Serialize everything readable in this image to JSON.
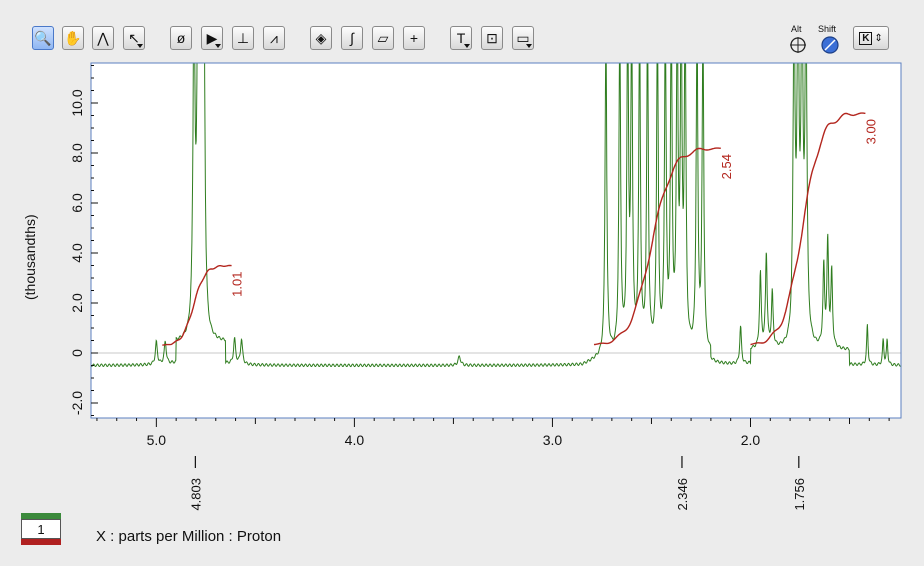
{
  "toolbar": {
    "tools": [
      {
        "name": "zoom-tool",
        "icon": "magnifier-icon",
        "glyph": "🔍",
        "active": true
      },
      {
        "name": "pan-tool",
        "icon": "hand-icon",
        "glyph": "✋"
      },
      {
        "name": "peak-tool",
        "icon": "peak-cursor-icon",
        "glyph": "⋀"
      },
      {
        "name": "select-tool",
        "icon": "arrow-cursor-icon",
        "glyph": "↖",
        "dropdown": true
      },
      {
        "name": "phase-tool",
        "icon": "phase-icon",
        "glyph": "ø"
      },
      {
        "name": "pointer-tool",
        "icon": "black-arrow-icon",
        "glyph": "▶",
        "dropdown": true
      },
      {
        "name": "baseline-tool",
        "icon": "baseline-icon",
        "glyph": "⊥"
      },
      {
        "name": "peak-pick-tool",
        "icon": "peak-pick-icon",
        "glyph": "⩘"
      },
      {
        "name": "center-tool",
        "icon": "diamond-target-icon",
        "glyph": "◈"
      },
      {
        "name": "integral-tool",
        "icon": "integral-icon",
        "glyph": "∫"
      },
      {
        "name": "ruler-tool",
        "icon": "ruler-icon",
        "glyph": "▱"
      },
      {
        "name": "crosshair-tool",
        "icon": "crosshair-icon",
        "glyph": "+"
      },
      {
        "name": "text-tool",
        "icon": "text-icon",
        "glyph": "T",
        "dropdown": true
      },
      {
        "name": "annotation-tool",
        "icon": "annotation-box-icon",
        "glyph": "⊡"
      },
      {
        "name": "frame-tool",
        "icon": "frame-icon",
        "glyph": "▭",
        "dropdown": true
      }
    ],
    "alt_label": "Alt",
    "shift_label": "Shift",
    "key_glyph": "K"
  },
  "colors": {
    "spectrum": "#2f7d1f",
    "integral": "#b3261e",
    "axis": "#111111",
    "frame": "#5b7fc0",
    "zero_line": "#c8c8c8"
  },
  "chart_data": {
    "type": "line",
    "xlabel": "X : parts per Million : Proton",
    "ylabel": "(thousandths)",
    "x_reversed": true,
    "xlim": [
      5.33,
      1.24
    ],
    "ylim": [
      -2.6,
      11.6
    ],
    "x_ticks": [
      5.0,
      4.0,
      3.0,
      2.0
    ],
    "x_tick_labels": [
      "5.0",
      "4.0",
      "3.0",
      "2.0"
    ],
    "y_ticks": [
      -2.0,
      0,
      2.0,
      4.0,
      6.0,
      8.0,
      10.0
    ],
    "y_tick_labels": [
      "-2.0",
      "0",
      "2.0",
      "4.0",
      "6.0",
      "8.0",
      "10.0"
    ],
    "peak_labels": [
      {
        "ppm": 4.803,
        "label": "4.803"
      },
      {
        "ppm": 2.346,
        "label": "2.346"
      },
      {
        "ppm": 1.756,
        "label": "1.756"
      }
    ],
    "integrals": [
      {
        "start": 4.97,
        "end": 4.62,
        "baseline": 0.3,
        "top": 3.5,
        "value_label": "1.01"
      },
      {
        "start": 2.79,
        "end": 2.15,
        "baseline": 0.3,
        "top": 8.2,
        "value_label": "2.54"
      },
      {
        "start": 2.0,
        "end": 1.42,
        "baseline": 0.3,
        "top": 9.6,
        "value_label": "3.00"
      }
    ],
    "series": [
      {
        "color": "#2f7d1f",
        "peaks": [
          {
            "ppm": 5.0,
            "h": 0.9,
            "w": 0.006
          },
          {
            "ppm": 4.955,
            "h": 0.9,
            "w": 0.006
          },
          {
            "ppm": 4.81,
            "h": 13,
            "w": 0.006
          },
          {
            "ppm": 4.79,
            "h": 13,
            "w": 0.006
          },
          {
            "ppm": 4.775,
            "h": 13,
            "w": 0.006
          },
          {
            "ppm": 4.76,
            "h": 13,
            "w": 0.006
          },
          {
            "ppm": 4.605,
            "h": 1.0,
            "w": 0.006
          },
          {
            "ppm": 4.57,
            "h": 1.0,
            "w": 0.006
          },
          {
            "ppm": 3.47,
            "h": 0.35,
            "w": 0.008
          },
          {
            "ppm": 2.73,
            "h": 13,
            "w": 0.005
          },
          {
            "ppm": 2.66,
            "h": 13,
            "w": 0.005
          },
          {
            "ppm": 2.62,
            "h": 13,
            "w": 0.005
          },
          {
            "ppm": 2.6,
            "h": 13,
            "w": 0.005
          },
          {
            "ppm": 2.56,
            "h": 13,
            "w": 0.005
          },
          {
            "ppm": 2.52,
            "h": 13,
            "w": 0.005
          },
          {
            "ppm": 2.47,
            "h": 13,
            "w": 0.005
          },
          {
            "ppm": 2.43,
            "h": 13,
            "w": 0.005
          },
          {
            "ppm": 2.4,
            "h": 13,
            "w": 0.005
          },
          {
            "ppm": 2.37,
            "h": 13,
            "w": 0.005
          },
          {
            "ppm": 2.35,
            "h": 13,
            "w": 0.005
          },
          {
            "ppm": 2.33,
            "h": 13,
            "w": 0.005
          },
          {
            "ppm": 2.27,
            "h": 13,
            "w": 0.005
          },
          {
            "ppm": 2.24,
            "h": 13,
            "w": 0.005
          },
          {
            "ppm": 2.05,
            "h": 1.5,
            "w": 0.005
          },
          {
            "ppm": 1.95,
            "h": 3.0,
            "w": 0.005
          },
          {
            "ppm": 1.92,
            "h": 3.8,
            "w": 0.005
          },
          {
            "ppm": 1.89,
            "h": 2.2,
            "w": 0.005
          },
          {
            "ppm": 1.78,
            "h": 13,
            "w": 0.006
          },
          {
            "ppm": 1.76,
            "h": 13,
            "w": 0.006
          },
          {
            "ppm": 1.74,
            "h": 13,
            "w": 0.006
          },
          {
            "ppm": 1.72,
            "h": 13,
            "w": 0.006
          },
          {
            "ppm": 1.63,
            "h": 3.2,
            "w": 0.005
          },
          {
            "ppm": 1.61,
            "h": 4.2,
            "w": 0.005
          },
          {
            "ppm": 1.59,
            "h": 3.0,
            "w": 0.005
          },
          {
            "ppm": 1.41,
            "h": 1.6,
            "w": 0.004
          },
          {
            "ppm": 1.33,
            "h": 1.0,
            "w": 0.004
          },
          {
            "ppm": 1.31,
            "h": 1.0,
            "w": 0.004
          }
        ]
      }
    ]
  },
  "spectrum_badge": "1"
}
